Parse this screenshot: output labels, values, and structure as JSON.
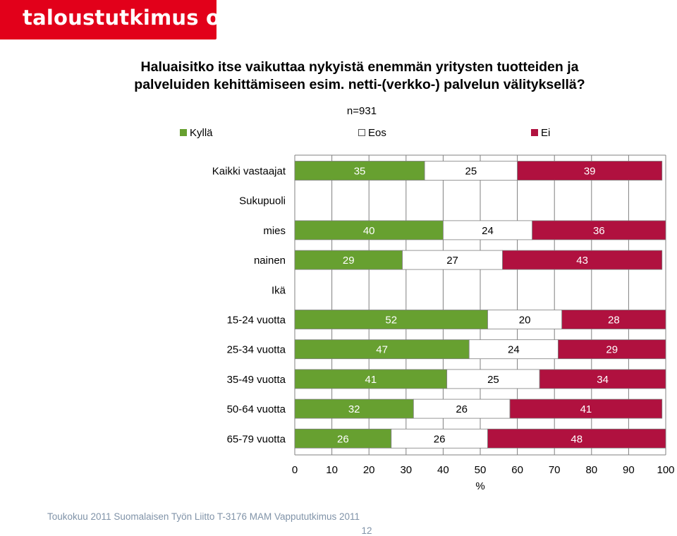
{
  "header": {
    "logo_text": "taloustutkimus oy",
    "title_line1": "Haluaisitko itse vaikuttaa nykyistä enemmän yritysten tuotteiden ja",
    "title_line2": "palveluiden kehittämiseen esim. netti-(verkko-) palvelun välityksellä?",
    "n_label": "n=931"
  },
  "colors": {
    "brand": "#e2001a",
    "kylla": "#67a030",
    "eos": "#ffffff",
    "ei": "#b0113f",
    "grid": "#808080",
    "footer": "#8093a8"
  },
  "chart_data": {
    "type": "bar",
    "orientation": "horizontal",
    "stacked": true,
    "title": "Haluaisitko itse vaikuttaa nykyistä enemmän yritysten tuotteiden ja palveluiden kehittämiseen esim. netti-(verkko-) palvelun välityksellä?",
    "subtitle": "n=931",
    "xlabel": "%",
    "ylabel": "",
    "xlim": [
      0,
      100
    ],
    "xticks": [
      0,
      10,
      20,
      30,
      40,
      50,
      60,
      70,
      80,
      90,
      100
    ],
    "grid": true,
    "legend_position": "top",
    "categories": [
      "Kaikki vastaajat",
      "Sukupuoli",
      "mies",
      "nainen",
      "Ikä",
      "15-24 vuotta",
      "25-34 vuotta",
      "35-49 vuotta",
      "50-64 vuotta",
      "65-79 vuotta"
    ],
    "series": [
      {
        "name": "Kyllä",
        "values": [
          35,
          null,
          40,
          29,
          null,
          52,
          47,
          41,
          32,
          26
        ]
      },
      {
        "name": "Eos",
        "values": [
          25,
          null,
          24,
          27,
          null,
          20,
          24,
          25,
          26,
          26
        ]
      },
      {
        "name": "Ei",
        "values": [
          39,
          null,
          36,
          43,
          null,
          28,
          29,
          34,
          41,
          48
        ]
      }
    ]
  },
  "footer": {
    "source": "Toukokuu 2011  Suomalaisen Työn Liitto  T-3176 MAM  Vappututkimus 2011",
    "page_number": "12"
  }
}
